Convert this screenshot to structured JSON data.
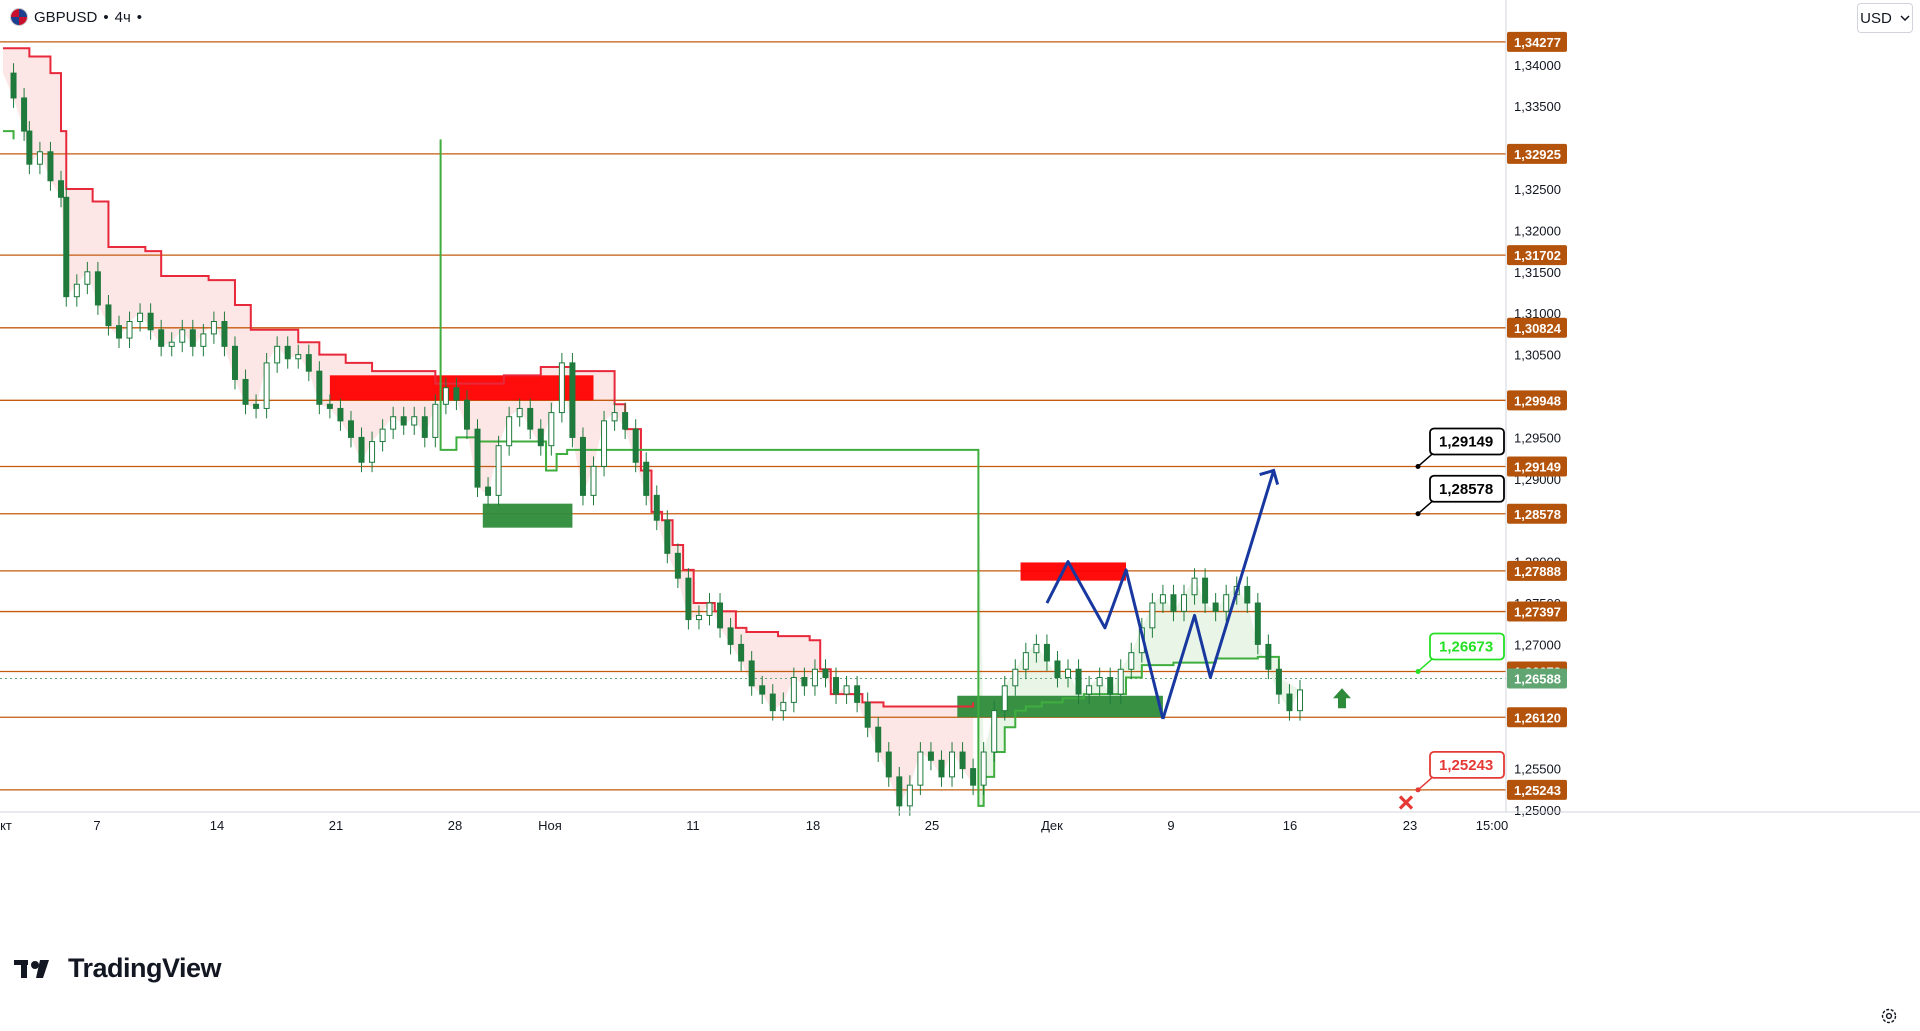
{
  "header": {
    "symbol": "GBPUSD",
    "timeframe": "4ч",
    "separator": "•",
    "flag_icon": "uk-us-flag-icon"
  },
  "currency_button": {
    "label": "USD",
    "icon": "chevron-down-icon"
  },
  "watermark": {
    "text": "TradingView",
    "icon": "tradingview-logo-icon"
  },
  "settings_icon": "gear-icon",
  "colors": {
    "level_line": "#c45a0e",
    "level_label_bg": "#b4540c",
    "up_candle": "#1f7a3c",
    "down_candle": "#1f7a3c",
    "resistance_line": "#e8283b",
    "support_line": "#3fae3f",
    "resistance_fill": "#fde3e3",
    "support_fill": "#e7f5e4",
    "supply_zone": "#ff0000",
    "demand_zone": "#2e8b3a",
    "forecast": "#1838a0",
    "current_price": "#61a573",
    "target_up": "#000000",
    "target_green": "#25e025",
    "stop_red": "#e53935"
  },
  "chart_data": {
    "type": "candlestick",
    "symbol": "GBPUSD",
    "timeframe": "4ч",
    "ylim": [
      1.25,
      1.343
    ],
    "y_ticks": [
      "1,34000",
      "1,33500",
      "1,32500",
      "1,32000",
      "1,31500",
      "1,31000",
      "1,30500",
      "1,29500",
      "1,29000",
      "1,28000",
      "1,27500",
      "1,27000",
      "1,25500",
      "1,25000"
    ],
    "x_ticks": [
      "кт",
      "7",
      "14",
      "21",
      "28",
      "Ноя",
      "11",
      "18",
      "25",
      "Дек",
      "9",
      "16",
      "23",
      "15:00"
    ],
    "horizontal_levels": [
      {
        "label": "1,34277",
        "value": 1.34277
      },
      {
        "label": "1,32925",
        "value": 1.32925
      },
      {
        "label": "1,31702",
        "value": 1.31702
      },
      {
        "label": "1,30824",
        "value": 1.30824
      },
      {
        "label": "1,29948",
        "value": 1.29948
      },
      {
        "label": "1,29149",
        "value": 1.29149
      },
      {
        "label": "1,28578",
        "value": 1.28578
      },
      {
        "label": "1,27888",
        "value": 1.27888
      },
      {
        "label": "1,27397",
        "value": 1.27397
      },
      {
        "label": "1,26673",
        "value": 1.26673
      },
      {
        "label": "1,26120",
        "value": 1.2612
      },
      {
        "label": "1,25243",
        "value": 1.25243
      }
    ],
    "current_price": {
      "label": "1,26588",
      "value": 1.26588
    },
    "targets": [
      {
        "label": "1,29149",
        "value": 1.29149,
        "style": "black"
      },
      {
        "label": "1,28578",
        "value": 1.28578,
        "style": "black"
      },
      {
        "label": "1,26673",
        "value": 1.26673,
        "style": "green"
      },
      {
        "label": "1,25243",
        "value": 1.25243,
        "style": "red"
      }
    ],
    "price_path": [
      [
        0,
        1.339
      ],
      [
        2,
        1.336
      ],
      [
        4,
        1.332
      ],
      [
        5,
        1.328
      ],
      [
        7,
        1.3295
      ],
      [
        9,
        1.326
      ],
      [
        11,
        1.324
      ],
      [
        12,
        1.312
      ],
      [
        14,
        1.3135
      ],
      [
        16,
        1.315
      ],
      [
        18,
        1.311
      ],
      [
        20,
        1.3085
      ],
      [
        22,
        1.307
      ],
      [
        24,
        1.309
      ],
      [
        26,
        1.31
      ],
      [
        28,
        1.308
      ],
      [
        30,
        1.306
      ],
      [
        32,
        1.3065
      ],
      [
        34,
        1.308
      ],
      [
        36,
        1.306
      ],
      [
        38,
        1.3075
      ],
      [
        40,
        1.309
      ],
      [
        42,
        1.306
      ],
      [
        44,
        1.302
      ],
      [
        46,
        1.299
      ],
      [
        48,
        1.2985
      ],
      [
        50,
        1.304
      ],
      [
        52,
        1.306
      ],
      [
        54,
        1.3045
      ],
      [
        56,
        1.305
      ],
      [
        58,
        1.303
      ],
      [
        60,
        1.299
      ],
      [
        62,
        1.2985
      ],
      [
        64,
        1.297
      ],
      [
        66,
        1.295
      ],
      [
        68,
        1.292
      ],
      [
        70,
        1.2945
      ],
      [
        72,
        1.296
      ],
      [
        74,
        1.2975
      ],
      [
        76,
        1.2965
      ],
      [
        78,
        1.2975
      ],
      [
        80,
        1.295
      ],
      [
        82,
        1.299
      ],
      [
        84,
        1.301
      ],
      [
        86,
        1.2995
      ],
      [
        88,
        1.296
      ],
      [
        90,
        1.289
      ],
      [
        92,
        1.288
      ],
      [
        94,
        1.294
      ],
      [
        96,
        1.2975
      ],
      [
        98,
        1.2985
      ],
      [
        100,
        1.296
      ],
      [
        102,
        1.294
      ],
      [
        104,
        1.298
      ],
      [
        106,
        1.304
      ],
      [
        108,
        1.295
      ],
      [
        110,
        1.288
      ],
      [
        112,
        1.2915
      ],
      [
        114,
        1.297
      ],
      [
        116,
        1.298
      ],
      [
        118,
        1.296
      ],
      [
        120,
        1.292
      ],
      [
        122,
        1.288
      ],
      [
        124,
        1.285
      ],
      [
        126,
        1.281
      ],
      [
        128,
        1.278
      ],
      [
        130,
        1.273
      ],
      [
        132,
        1.2735
      ],
      [
        134,
        1.275
      ],
      [
        136,
        1.272
      ],
      [
        138,
        1.27
      ],
      [
        140,
        1.268
      ],
      [
        142,
        1.265
      ],
      [
        144,
        1.264
      ],
      [
        146,
        1.262
      ],
      [
        148,
        1.263
      ],
      [
        150,
        1.266
      ],
      [
        152,
        1.265
      ],
      [
        154,
        1.267
      ],
      [
        156,
        1.266
      ],
      [
        158,
        1.264
      ],
      [
        160,
        1.265
      ],
      [
        162,
        1.263
      ],
      [
        164,
        1.26
      ],
      [
        166,
        1.257
      ],
      [
        168,
        1.254
      ],
      [
        170,
        1.2505
      ],
      [
        172,
        1.253
      ],
      [
        174,
        1.257
      ],
      [
        176,
        1.256
      ],
      [
        178,
        1.254
      ],
      [
        180,
        1.257
      ],
      [
        182,
        1.255
      ],
      [
        184,
        1.253
      ],
      [
        186,
        1.257
      ],
      [
        188,
        1.262
      ],
      [
        190,
        1.265
      ],
      [
        192,
        1.267
      ],
      [
        194,
        1.269
      ],
      [
        196,
        1.27
      ],
      [
        198,
        1.268
      ],
      [
        200,
        1.266
      ],
      [
        202,
        1.267
      ],
      [
        204,
        1.264
      ],
      [
        206,
        1.265
      ],
      [
        208,
        1.266
      ],
      [
        210,
        1.264
      ],
      [
        212,
        1.267
      ],
      [
        214,
        1.269
      ],
      [
        216,
        1.272
      ],
      [
        218,
        1.275
      ],
      [
        220,
        1.276
      ],
      [
        222,
        1.274
      ],
      [
        224,
        1.276
      ],
      [
        226,
        1.278
      ],
      [
        228,
        1.275
      ],
      [
        230,
        1.274
      ],
      [
        232,
        1.276
      ],
      [
        234,
        1.277
      ],
      [
        236,
        1.275
      ],
      [
        238,
        1.27
      ],
      [
        240,
        1.267
      ],
      [
        242,
        1.264
      ],
      [
        244,
        1.262
      ],
      [
        246,
        1.2645
      ]
    ],
    "resistance_steps": [
      [
        0,
        1.342
      ],
      [
        5,
        1.341
      ],
      [
        9,
        1.339
      ],
      [
        11,
        1.332
      ],
      [
        12,
        1.325
      ],
      [
        17,
        1.3235
      ],
      [
        20,
        1.318
      ],
      [
        27,
        1.3175
      ],
      [
        30,
        1.3145
      ],
      [
        39,
        1.314
      ],
      [
        44,
        1.311
      ],
      [
        47,
        1.308
      ],
      [
        56,
        1.3065
      ],
      [
        60,
        1.305
      ],
      [
        65,
        1.304
      ],
      [
        70,
        1.303
      ],
      [
        82,
        1.3015
      ],
      [
        95,
        1.3025
      ],
      [
        102,
        1.3035
      ],
      [
        108,
        1.303
      ],
      [
        113,
        1.303
      ],
      [
        116,
        1.299
      ],
      [
        118,
        1.296
      ],
      [
        121,
        1.291
      ],
      [
        123,
        1.286
      ],
      [
        125,
        1.285
      ],
      [
        127,
        1.282
      ],
      [
        129,
        1.279
      ],
      [
        131,
        1.275
      ],
      [
        135,
        1.274
      ],
      [
        139,
        1.272
      ],
      [
        141,
        1.2715
      ],
      [
        147,
        1.271
      ],
      [
        153,
        1.2705
      ],
      [
        155,
        1.267
      ],
      [
        157,
        1.264
      ],
      [
        163,
        1.263
      ],
      [
        167,
        1.2625
      ],
      [
        184,
        1.263
      ]
    ],
    "support_steps": [
      [
        0,
        1.332
      ],
      [
        2,
        1.331
      ],
      [
        83,
        1.2935
      ],
      [
        86,
        1.295
      ],
      [
        90,
        1.2945
      ],
      [
        103,
        1.291
      ],
      [
        105,
        1.293
      ],
      [
        107,
        1.2935
      ],
      [
        185,
        1.2505
      ],
      [
        186,
        1.254
      ],
      [
        188,
        1.257
      ],
      [
        190,
        1.26
      ],
      [
        192,
        1.262
      ],
      [
        194,
        1.2625
      ],
      [
        197,
        1.263
      ],
      [
        201,
        1.2635
      ],
      [
        205,
        1.264
      ],
      [
        213,
        1.266
      ],
      [
        216,
        1.2675
      ],
      [
        222,
        1.2678
      ],
      [
        230,
        1.2683
      ],
      [
        238,
        1.2685
      ],
      [
        242,
        1.266
      ]
    ],
    "zones": [
      {
        "type": "supply",
        "x0": 62,
        "x1": 112,
        "y0": 1.2995,
        "y1": 1.3025
      },
      {
        "type": "demand",
        "x0": 91,
        "x1": 108,
        "y0": 1.2841,
        "y1": 1.287
      },
      {
        "type": "supply",
        "x0": 193,
        "x1": 213,
        "y0": 1.2777,
        "y1": 1.2799
      },
      {
        "type": "demand",
        "x0": 181,
        "x1": 220,
        "y0": 1.2612,
        "y1": 1.2638
      }
    ],
    "forecast_path_1": [
      [
        1.275,
        198
      ],
      [
        1.28,
        202
      ],
      [
        1.272,
        209
      ],
      [
        1.279,
        213
      ],
      [
        1.261,
        220
      ]
    ],
    "forecast_path_2": [
      [
        1.261,
        220
      ],
      [
        1.2735,
        226
      ],
      [
        1.266,
        229
      ],
      [
        1.291,
        241
      ]
    ]
  }
}
